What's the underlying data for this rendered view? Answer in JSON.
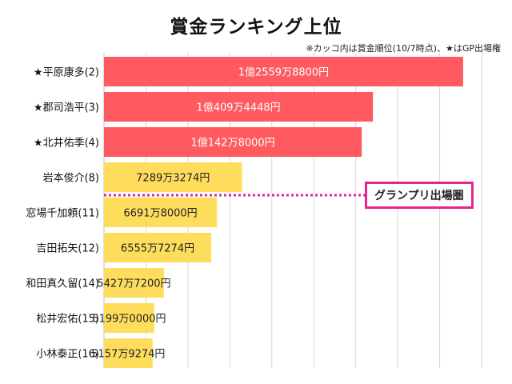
{
  "chart_data": {
    "type": "bar",
    "orientation": "horizontal",
    "title": "賞金ランキング上位",
    "note": "※カッコ内は賞金順位(10/7時点)、★はGP出場権",
    "categories": [
      "★平原康多(2)",
      "★郡司浩平(3)",
      "★北井佑季(4)",
      "岩本俊介(8)",
      "窓場千加頼(11)",
      "吉田拓矢(12)",
      "和田真久留(14)",
      "松井宏佑(15)",
      "小林泰正(16)"
    ],
    "values": [
      125598800,
      104094448,
      101428000,
      72893274,
      66918000,
      65557274,
      54277200,
      51990000,
      51579274
    ],
    "value_labels": [
      "1億2559万8800円",
      "1億409万4448円",
      "1億142万8000円",
      "7289万3274円",
      "6691万8000円",
      "6555万7274円",
      "5427万7200円",
      "5199万0000円",
      "5157万9274円"
    ],
    "gp_flags": [
      true,
      true,
      true,
      false,
      false,
      false,
      false,
      false,
      false
    ],
    "xlim": [
      40000000,
      130000000
    ],
    "grid": true,
    "annotation": {
      "label": "グランプリ出場圏",
      "after_index": 3
    },
    "colors": {
      "gp": "#ff5a5f",
      "other": "#ffdd5c",
      "grid": "#d6d6d6",
      "annotation": "#e6238f"
    }
  }
}
